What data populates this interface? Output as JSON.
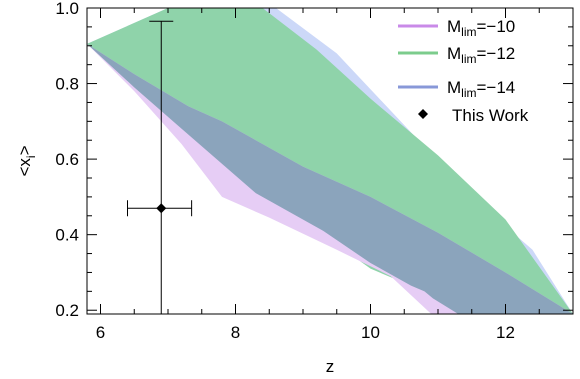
{
  "chart_data": {
    "type": "area",
    "xlabel": "z",
    "ylabel": "<x_i>",
    "ylabel_parts": {
      "main": "<x",
      "sub": "i",
      "end": ">"
    },
    "xlim": [
      5.8,
      13.0
    ],
    "ylim": [
      0.19,
      1.0
    ],
    "x_ticks": [
      6,
      8,
      10,
      12
    ],
    "x_tick_labels": [
      "6",
      "8",
      "10",
      "12"
    ],
    "y_ticks": [
      0.2,
      0.4,
      0.6,
      0.8,
      1.0
    ],
    "y_tick_labels": [
      "0.2",
      "0.4",
      "0.6",
      "0.8",
      "1.0"
    ],
    "grid": false,
    "legend_position": "top-right",
    "series": [
      {
        "name": "M_lim=−10",
        "label_parts": {
          "pre": "M",
          "sub": "lim",
          "post": "=−10"
        },
        "color": "#c98ae8",
        "fill": "#e6cdf5",
        "upper": [
          [
            5.8,
            0.905
          ],
          [
            6.5,
            0.825
          ],
          [
            7.3,
            0.74
          ],
          [
            7.8,
            0.7
          ],
          [
            8.3,
            0.65
          ],
          [
            9.0,
            0.58
          ],
          [
            10.0,
            0.5
          ],
          [
            11.0,
            0.405
          ],
          [
            12.0,
            0.3
          ],
          [
            13.0,
            0.19
          ]
        ],
        "lower": [
          [
            5.8,
            0.905
          ],
          [
            6.5,
            0.78
          ],
          [
            7.2,
            0.64
          ],
          [
            7.8,
            0.5
          ],
          [
            8.5,
            0.445
          ],
          [
            9.5,
            0.36
          ],
          [
            10.3,
            0.29
          ],
          [
            10.9,
            0.19
          ]
        ]
      },
      {
        "name": "M_lim=−12",
        "label_parts": {
          "pre": "M",
          "sub": "lim",
          "post": "=−12"
        },
        "color": "#7ccc8c",
        "fill": "#8fd3aa",
        "upper": [
          [
            5.8,
            0.905
          ],
          [
            7.0,
            1.0
          ],
          [
            8.4,
            1.0
          ],
          [
            9.2,
            0.89
          ],
          [
            10.0,
            0.76
          ],
          [
            11.0,
            0.61
          ],
          [
            12.0,
            0.44
          ],
          [
            13.0,
            0.19
          ]
        ],
        "lower": [
          [
            5.8,
            0.905
          ],
          [
            6.5,
            0.79
          ],
          [
            7.3,
            0.66
          ],
          [
            8.3,
            0.505
          ],
          [
            9.3,
            0.4
          ],
          [
            10.0,
            0.31
          ],
          [
            10.8,
            0.25
          ],
          [
            11.2,
            0.19
          ]
        ]
      },
      {
        "name": "M_lim=−14",
        "label_parts": {
          "pre": "M",
          "sub": "lim",
          "post": "=−14"
        },
        "color": "#8898d8",
        "fill": "#ccd8f8",
        "upper": [
          [
            5.8,
            0.905
          ],
          [
            7.0,
            1.0
          ],
          [
            8.6,
            1.0
          ],
          [
            9.5,
            0.88
          ],
          [
            10.5,
            0.69
          ],
          [
            11.5,
            0.5
          ],
          [
            12.4,
            0.36
          ],
          [
            13.0,
            0.19
          ]
        ],
        "lower": [
          [
            5.8,
            0.905
          ],
          [
            6.5,
            0.79
          ],
          [
            7.3,
            0.665
          ],
          [
            8.3,
            0.51
          ],
          [
            9.3,
            0.41
          ],
          [
            10.0,
            0.325
          ],
          [
            10.8,
            0.245
          ],
          [
            11.3,
            0.19
          ]
        ]
      },
      {
        "name": "This Work",
        "type": "scatter",
        "marker": "diamond",
        "color": "#000000",
        "points": [
          {
            "x": 6.9,
            "y": 0.47,
            "x_low": 6.4,
            "x_high": 7.35,
            "y_low": 0.19,
            "y_high": 0.965
          }
        ]
      }
    ],
    "overlap_fill": "#8ba4bc"
  }
}
